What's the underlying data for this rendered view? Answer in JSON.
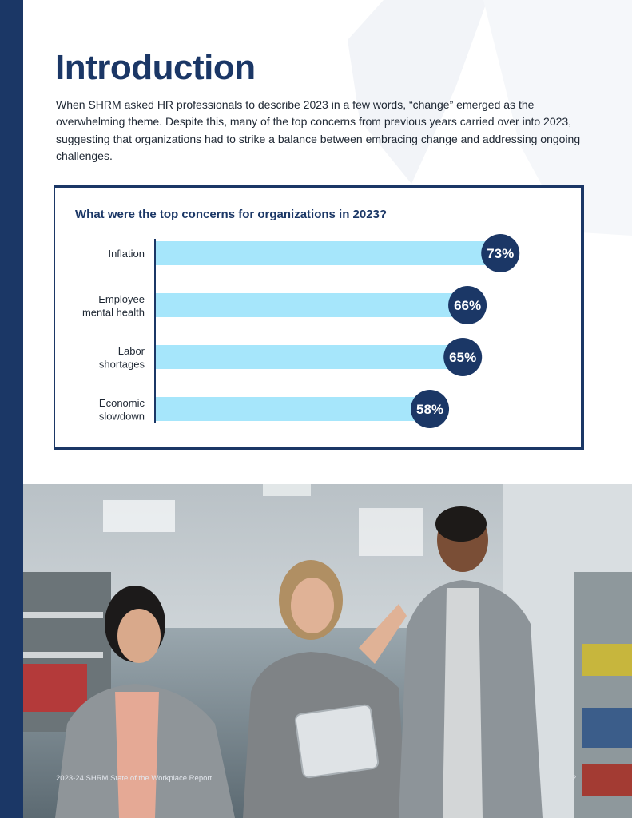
{
  "page": {
    "title": "Introduction",
    "intro": "When SHRM asked HR professionals to describe 2023 in a few words, “change” emerged as the overwhelming theme. Despite this, many of the top concerns from previous years carried over into 2023, suggesting that organizations had to strike a balance between embracing change and addressing ongoing challenges.",
    "footer": "2023-24 SHRM State of the Workplace Report",
    "page_number": "2"
  },
  "colors": {
    "navy": "#1b3766",
    "bar": "#a6e6fb",
    "axis": "#1b3766"
  },
  "chart_data": {
    "type": "bar",
    "orientation": "horizontal",
    "title": "What were the top concerns for organizations in 2023?",
    "categories": [
      [
        "Inflation"
      ],
      [
        "Employee",
        "mental health"
      ],
      [
        "Labor",
        "shortages"
      ],
      [
        "Economic",
        "slowdown"
      ]
    ],
    "values": [
      73,
      66,
      65,
      58
    ],
    "labels": [
      "73%",
      "66%",
      "65%",
      "58%"
    ],
    "xlim": [
      0,
      100
    ],
    "grid": false,
    "legend": "none"
  }
}
